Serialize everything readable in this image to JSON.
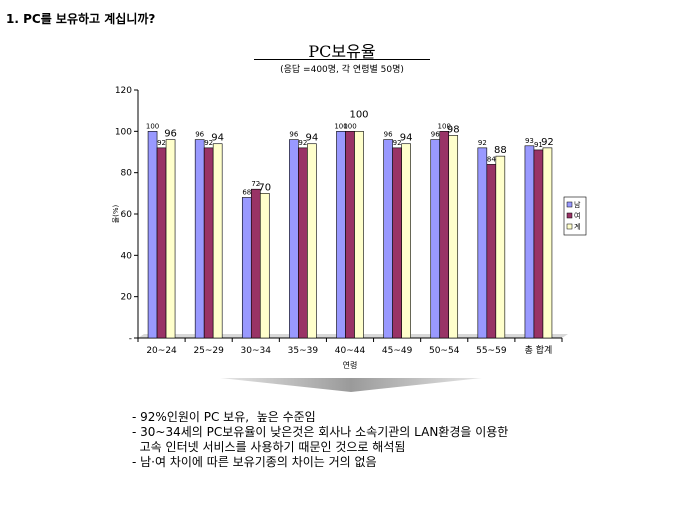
{
  "question": "1. PC를 보유하고 계십니까?",
  "chart_data": {
    "type": "bar",
    "title": "PC보유율",
    "subtitle": "(응답 =400명, 각 연령별 50명)",
    "xlabel": "연령",
    "ylabel": "율(%)",
    "ylim": [
      0,
      120
    ],
    "yticks": [
      "-",
      "20",
      "40",
      "60",
      "80",
      "100",
      "120"
    ],
    "grid": false,
    "legend_position": "right",
    "categories": [
      "20~24",
      "25~29",
      "30~34",
      "35~39",
      "40~44",
      "45~49",
      "50~54",
      "55~59",
      "총 합계"
    ],
    "series": [
      {
        "name": "남",
        "color": "#9999ff",
        "values": [
          100,
          96,
          68,
          96,
          100,
          96,
          96,
          92,
          93
        ]
      },
      {
        "name": "여",
        "color": "#993366",
        "values": [
          92,
          92,
          72,
          92,
          100,
          92,
          100,
          84,
          91
        ]
      },
      {
        "name": "계",
        "color": "#ffffcc",
        "values": [
          96,
          94,
          70,
          94,
          100,
          94,
          98,
          88,
          92
        ]
      }
    ]
  },
  "notes": [
    "- 92%인원이 PC 보유,  높은 수준임",
    "- 30~34세의 PC보유율이 낮은것은 회사나 소속기관의 LAN환경을 이용한",
    "  고속 인터넷 서비스를 사용하기 때문인 것으로 해석됨",
    "- 남·여 차이에 따른 보유기종의 차이는 거의 없음"
  ]
}
